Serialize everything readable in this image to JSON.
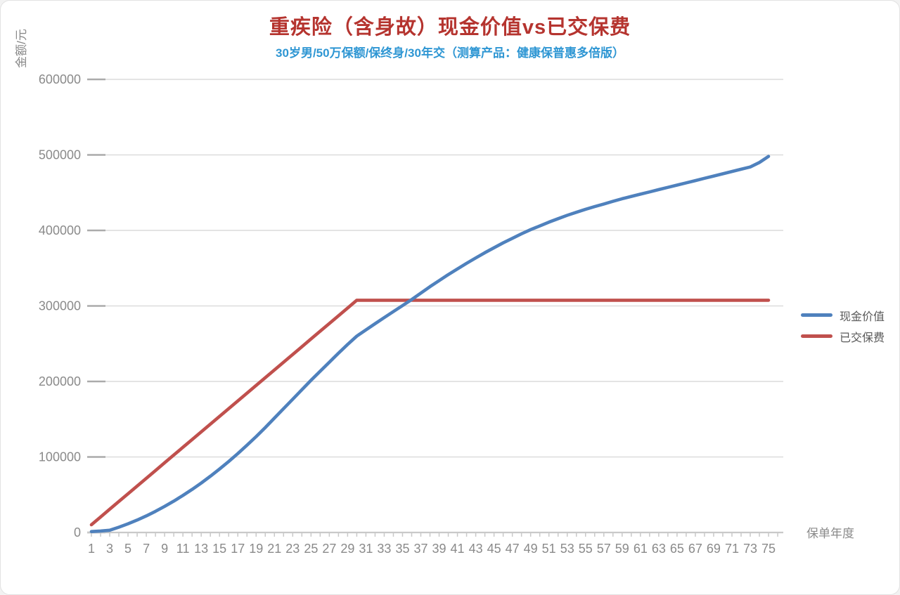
{
  "header": {
    "title": "重疾险（含身故）现金价值vs已交保费",
    "title_color": "#b5342f",
    "subtitle": "30岁男/50万保额/保终身/30年交（测算产品：健康保普惠多倍版）",
    "subtitle_color": "#2e96d3"
  },
  "chart_data": {
    "type": "line",
    "title": "重疾险（含身故）现金价值vs已交保费",
    "subtitle": "30岁男/50万保额/保终身/30年交（测算产品：健康保普惠多倍版）",
    "xlabel": "保单年度",
    "ylabel": "金额/元",
    "x_range": [
      1,
      75
    ],
    "x_tick_labels": [
      1,
      3,
      5,
      7,
      9,
      11,
      13,
      15,
      17,
      19,
      21,
      23,
      25,
      27,
      29,
      31,
      33,
      35,
      37,
      39,
      41,
      43,
      45,
      47,
      49,
      51,
      53,
      55,
      57,
      59,
      61,
      63,
      65,
      67,
      69,
      71,
      73,
      75
    ],
    "y_ticks": [
      0,
      100000,
      200000,
      300000,
      400000,
      500000,
      600000
    ],
    "ylim": [
      0,
      600000
    ],
    "grid": true,
    "legend_position": "right",
    "series": [
      {
        "name": "现金价值",
        "color": "#4f81bd",
        "values": [
          1200,
          2000,
          3000,
          7000,
          11500,
          16500,
          22000,
          28000,
          34500,
          41500,
          49000,
          57000,
          65500,
          74500,
          84000,
          94000,
          104500,
          115500,
          127000,
          139000,
          151500,
          164000,
          176500,
          189000,
          201500,
          213500,
          225500,
          237500,
          249000,
          260000,
          268300,
          276500,
          284600,
          292600,
          300500,
          308500,
          317000,
          325500,
          333500,
          341500,
          349000,
          356500,
          363500,
          370500,
          377000,
          383500,
          389500,
          395500,
          401000,
          406000,
          411000,
          415500,
          420000,
          424000,
          428000,
          431500,
          435000,
          438500,
          442000,
          445000,
          448000,
          451000,
          454000,
          457000,
          460000,
          463000,
          466000,
          469000,
          472000,
          475000,
          478000,
          481000,
          484000,
          490000,
          498000
        ]
      },
      {
        "name": "已交保费",
        "color": "#c0504d",
        "values": [
          10250,
          20500,
          30750,
          41000,
          51250,
          61500,
          71750,
          82000,
          92250,
          102500,
          112750,
          123000,
          133250,
          143500,
          153750,
          164000,
          174250,
          184500,
          194750,
          205000,
          215250,
          225500,
          235750,
          246000,
          256250,
          266500,
          276750,
          287000,
          297250,
          307500,
          307500,
          307500,
          307500,
          307500,
          307500,
          307500,
          307500,
          307500,
          307500,
          307500,
          307500,
          307500,
          307500,
          307500,
          307500,
          307500,
          307500,
          307500,
          307500,
          307500,
          307500,
          307500,
          307500,
          307500,
          307500,
          307500,
          307500,
          307500,
          307500,
          307500,
          307500,
          307500,
          307500,
          307500,
          307500,
          307500,
          307500,
          307500,
          307500,
          307500,
          307500,
          307500,
          307500,
          307500,
          307500
        ]
      }
    ]
  }
}
